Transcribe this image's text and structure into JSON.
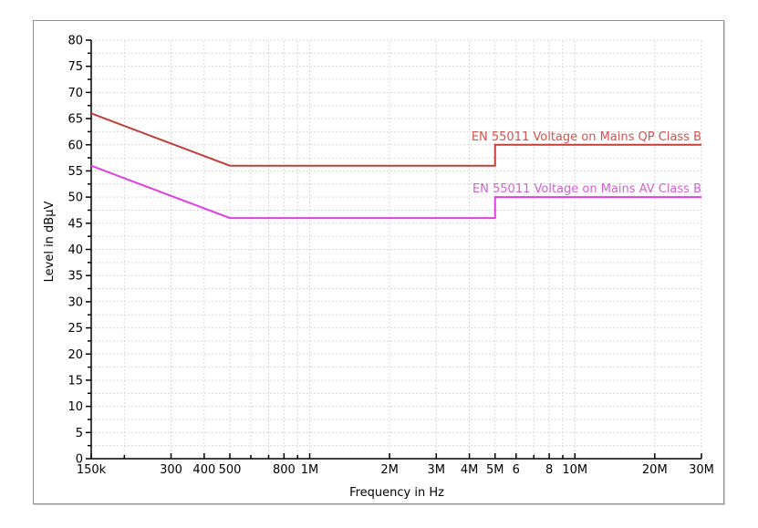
{
  "window": {
    "background": "#ffffff",
    "panel_border_color": "#919191"
  },
  "chart_data": {
    "type": "line",
    "x_scale": "log",
    "title": "",
    "xlabel": "Frequency in Hz",
    "ylabel": "Level in dBµV",
    "xlim": [
      150000,
      30000000
    ],
    "ylim": [
      0,
      80
    ],
    "y_major_step": 5,
    "y_minor_step": 2.5,
    "grid": true,
    "grid_color": "#d9d9d9",
    "axis_color": "#000000",
    "legend_position": "labels-above-lines-right-aligned",
    "x_ticks": [
      {
        "f": 150000,
        "label": "150k",
        "major": true
      },
      {
        "f": 200000,
        "label": "",
        "major": false
      },
      {
        "f": 300000,
        "label": "300",
        "major": true
      },
      {
        "f": 400000,
        "label": "400",
        "major": true
      },
      {
        "f": 500000,
        "label": "500",
        "major": true
      },
      {
        "f": 600000,
        "label": "",
        "major": false
      },
      {
        "f": 700000,
        "label": "",
        "major": false
      },
      {
        "f": 800000,
        "label": "800",
        "major": true
      },
      {
        "f": 900000,
        "label": "",
        "major": false
      },
      {
        "f": 1000000,
        "label": "1M",
        "major": true
      },
      {
        "f": 2000000,
        "label": "2M",
        "major": true
      },
      {
        "f": 3000000,
        "label": "3M",
        "major": true
      },
      {
        "f": 4000000,
        "label": "4M",
        "major": true
      },
      {
        "f": 5000000,
        "label": "5M",
        "major": true
      },
      {
        "f": 6000000,
        "label": "6",
        "major": true
      },
      {
        "f": 7000000,
        "label": "",
        "major": false
      },
      {
        "f": 8000000,
        "label": "8",
        "major": true
      },
      {
        "f": 9000000,
        "label": "",
        "major": false
      },
      {
        "f": 10000000,
        "label": "10M",
        "major": true
      },
      {
        "f": 20000000,
        "label": "20M",
        "major": true
      },
      {
        "f": 30000000,
        "label": "30M",
        "major": true
      }
    ],
    "series": [
      {
        "name": "EN 55011 Voltage on Mains QP Class B",
        "color": "#c2403a",
        "label_color": "#d2524e",
        "points": [
          [
            150000,
            66
          ],
          [
            500000,
            56
          ],
          [
            5000000,
            56
          ],
          [
            5000000,
            60
          ],
          [
            30000000,
            60
          ]
        ]
      },
      {
        "name": "EN 55011 Voltage on Mains AV Class B",
        "color": "#e040e0",
        "label_color": "#cf62cf",
        "points": [
          [
            150000,
            56
          ],
          [
            500000,
            46
          ],
          [
            5000000,
            46
          ],
          [
            5000000,
            50
          ],
          [
            30000000,
            50
          ]
        ]
      }
    ]
  }
}
